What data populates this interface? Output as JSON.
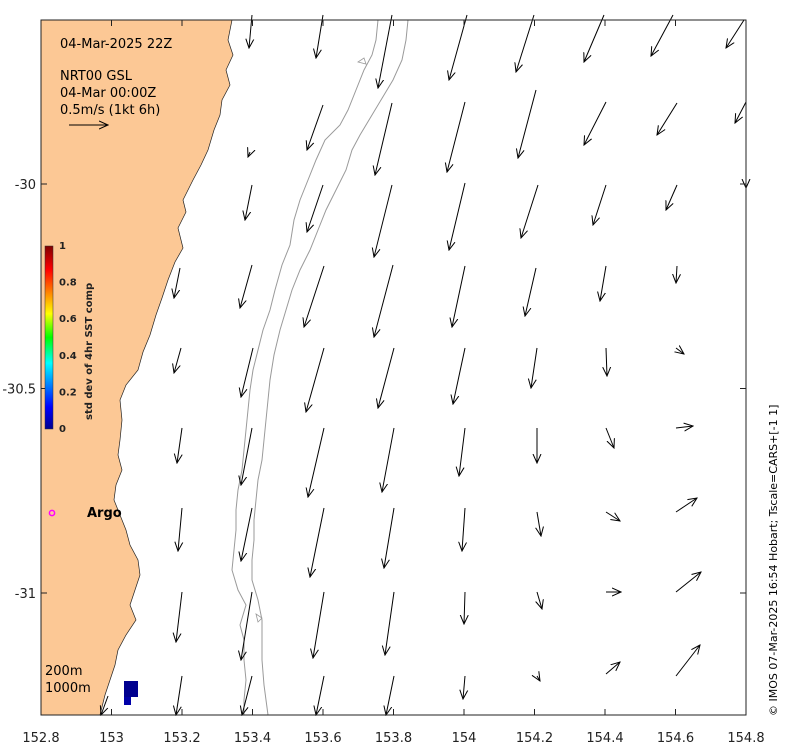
{
  "map": {
    "title_date": "04-Mar-2025 22Z",
    "product": "NRT00 GSL",
    "product_date": "04-Mar 00:00Z",
    "scale_label": "0.5m/s (1kt 6h)",
    "x_ticks": [
      "152.8",
      "153",
      "153.2",
      "153.4",
      "153.6",
      "153.8",
      "154",
      "154.2",
      "154.4",
      "154.6",
      "154.8"
    ],
    "y_ticks": [
      "-30",
      "-30.5",
      "-31"
    ],
    "y_tick_values": [
      -30,
      -30.5,
      -31
    ],
    "x_range": [
      152.8,
      154.8
    ],
    "colors": {
      "land": "#fcc895",
      "ocean": "#ffffff",
      "contour": "#9a9a9a",
      "arrow": "#000000",
      "argo": "#ff00ff"
    }
  },
  "colorbar": {
    "label": "std dev of 4hr SST comp",
    "ticks": [
      "0",
      "0.2",
      "0.4",
      "0.6",
      "0.8",
      "1"
    ],
    "tick_values": [
      0,
      0.2,
      0.4,
      0.6,
      0.8,
      1
    ],
    "colormap": "jet"
  },
  "legend": {
    "argo_label": "Argo",
    "contour_200": "200m",
    "contour_1000": "1000m"
  },
  "credit": "© IMOS 07-Mar-2025 16:54 Hobart; Tscale=CARS+[-1 1]"
}
